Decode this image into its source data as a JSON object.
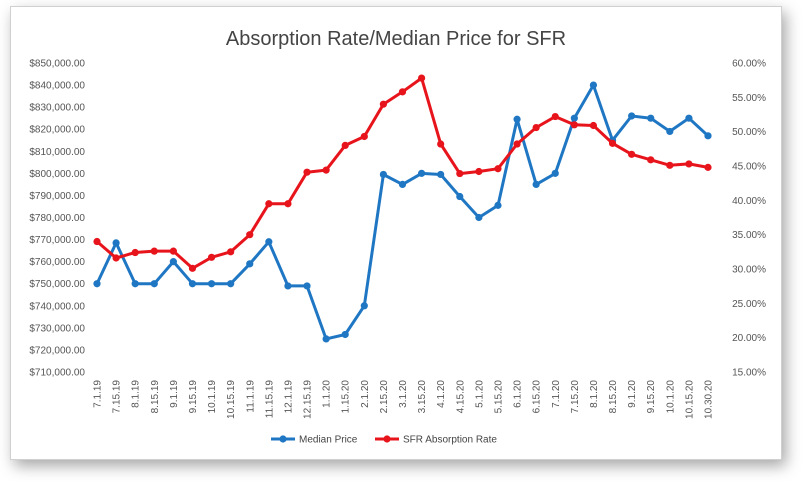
{
  "chart_data": {
    "type": "line",
    "title": "Absorption Rate/Median Price for SFR",
    "categories": [
      "7.1.19",
      "7.15.19",
      "8.1.19",
      "8.15.19",
      "9.1.19",
      "9.15.19",
      "10.1.19",
      "10.15.19",
      "11.1.19",
      "11.15.19",
      "12.1.19",
      "12.15.19",
      "1.1.20",
      "1.15.20",
      "2.1.20",
      "2.15.20",
      "3.1.20",
      "3.15.20",
      "4.1.20",
      "4.15.20",
      "5.1.20",
      "5.15.20",
      "6.1.20",
      "6.15.20",
      "7.1.20",
      "7.15.20",
      "8.1.20",
      "8.15.20",
      "9.1.20",
      "9.15.20",
      "10.1.20",
      "10.15.20",
      "10.30.20"
    ],
    "series": [
      {
        "name": "Median Price",
        "axis": "left",
        "color": "#1f77c4",
        "values": [
          750000,
          768500,
          750000,
          750000,
          760000,
          750000,
          750000,
          750000,
          759000,
          769000,
          749000,
          749000,
          725000,
          727000,
          740000,
          799500,
          795000,
          800000,
          799500,
          789500,
          780000,
          785500,
          824500,
          795000,
          800000,
          825000,
          840000,
          815000,
          826000,
          825000,
          819000,
          825000,
          817000
        ]
      },
      {
        "name": "SFR Absorption Rate",
        "axis": "right",
        "color": "#e8141c",
        "values": [
          34.0,
          31.6,
          32.4,
          32.6,
          32.6,
          30.1,
          31.7,
          32.5,
          35.0,
          39.5,
          39.5,
          44.1,
          44.4,
          48.0,
          49.3,
          54.0,
          55.8,
          57.8,
          48.2,
          43.9,
          44.2,
          44.6,
          48.2,
          50.6,
          52.2,
          51.0,
          50.9,
          48.3,
          46.7,
          45.9,
          45.1,
          45.3,
          44.8
        ]
      }
    ],
    "y_left": {
      "min": 710000,
      "max": 850000,
      "step": 10000,
      "ticks": [
        "$710,000.00",
        "$720,000.00",
        "$730,000.00",
        "$740,000.00",
        "$750,000.00",
        "$760,000.00",
        "$770,000.00",
        "$780,000.00",
        "$790,000.00",
        "$800,000.00",
        "$810,000.00",
        "$820,000.00",
        "$830,000.00",
        "$840,000.00",
        "$850,000.00"
      ]
    },
    "y_right": {
      "min": 15,
      "max": 60,
      "step": 5,
      "ticks": [
        "15.00%",
        "20.00%",
        "25.00%",
        "30.00%",
        "35.00%",
        "40.00%",
        "45.00%",
        "50.00%",
        "55.00%",
        "60.00%"
      ]
    },
    "grid": false,
    "legend_position": "bottom"
  }
}
